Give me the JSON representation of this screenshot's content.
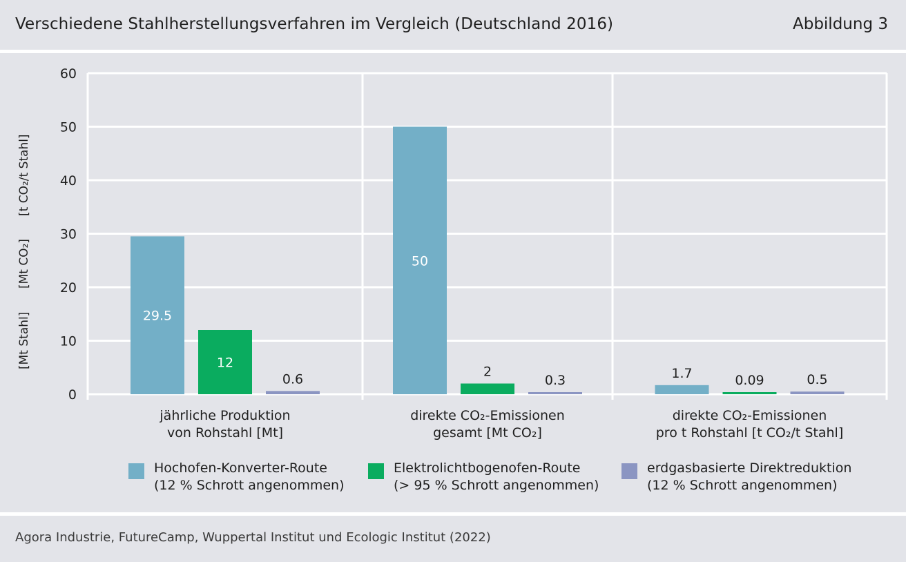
{
  "header": {
    "title": "Verschiedene Stahlherstellungsverfahren im Vergleich (Deutschland 2016)",
    "figure_label": "Abbildung 3"
  },
  "footer": {
    "source": "Agora Industrie, FutureCamp, Wuppertal Institut und Ecologic Institut (2022)"
  },
  "colors": {
    "background": "#e3e4e9",
    "grid": "#ffffff",
    "series": [
      "#73afc7",
      "#0aac5f",
      "#8b95c2"
    ]
  },
  "chart_data": {
    "type": "bar",
    "ylim": [
      0,
      60
    ],
    "yticks": [
      0,
      10,
      20,
      30,
      40,
      50,
      60
    ],
    "ylabels": [
      "[Mt Stahl]",
      "[Mt CO₂]",
      "[t CO₂/t Stahl]"
    ],
    "grid": true,
    "legend_position": "bottom",
    "categories": [
      [
        "jährliche Produktion",
        "von Rohstahl [Mt]"
      ],
      [
        "direkte CO₂-Emissionen",
        "gesamt [Mt CO₂]"
      ],
      [
        "direkte CO₂-Emissionen",
        "pro t Rohstahl [t CO₂/t Stahl]"
      ]
    ],
    "series": [
      {
        "name": "Hochofen-Konverter-Route",
        "note": "(12 % Schrott angenommen)",
        "values": [
          29.5,
          50,
          1.7
        ],
        "labels": [
          "29.5",
          "50",
          "1.7"
        ],
        "label_inside": [
          true,
          true,
          false
        ]
      },
      {
        "name": "Elektrolichtbogenofen-Route",
        "note": "(> 95 % Schrott angenommen)",
        "values": [
          12,
          2,
          0.09
        ],
        "labels": [
          "12",
          "2",
          "0.09"
        ],
        "label_inside": [
          true,
          false,
          false
        ]
      },
      {
        "name": "erdgasbasierte Direktreduktion",
        "note": "(12 % Schrott angenommen)",
        "values": [
          0.6,
          0.3,
          0.5
        ],
        "labels": [
          "0.6",
          "0.3",
          "0.5"
        ],
        "label_inside": [
          false,
          false,
          false
        ]
      }
    ]
  }
}
